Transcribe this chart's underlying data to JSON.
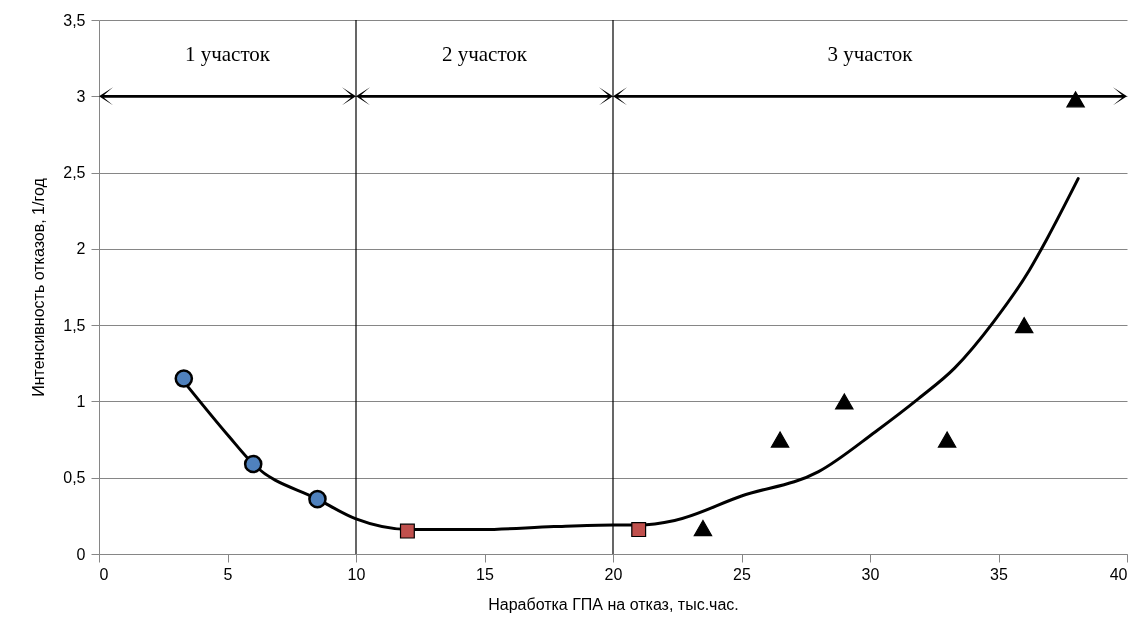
{
  "chart_data": {
    "type": "scatter",
    "xlabel": "Наработка ГПА на отказ, тыс.час.",
    "ylabel": "Интенсивность отказов, 1/год",
    "xlim": [
      0,
      40
    ],
    "ylim": [
      0,
      3.5
    ],
    "xticks": [
      0,
      5,
      10,
      15,
      20,
      25,
      30,
      35,
      40
    ],
    "yticks": [
      0,
      {
        "value": 0.5,
        "label": "0,5"
      },
      1,
      {
        "value": 1.5,
        "label": "1,5"
      },
      2,
      {
        "value": 2.5,
        "label": "2,5"
      },
      3,
      {
        "value": 3.5,
        "label": "3,5"
      }
    ],
    "grid": "y",
    "ref_lines": [
      {
        "axis": "x",
        "value": 10,
        "color": "#000000"
      },
      {
        "axis": "x",
        "value": 20,
        "color": "#000000"
      }
    ],
    "annotations": [
      "1 участок",
      "2 участок",
      "3 участок"
    ],
    "series": [
      {
        "type": "line",
        "color": "#000000",
        "marker": "none",
        "x": [
          3.3,
          5.06,
          6,
          8.5,
          10,
          12.1,
          14.9,
          17.7,
          20,
          21,
          22.4,
          25,
          28,
          30.2,
          31.9,
          33.3,
          34.8,
          36.2,
          36.9,
          38.1
        ],
        "values": [
          1.13,
          0.77,
          0.59,
          0.36,
          0.23,
          0.16,
          0.16,
          0.18,
          0.19,
          0.19,
          0.22,
          0.38,
          0.54,
          0.8,
          1.02,
          1.22,
          1.52,
          1.86,
          2.07,
          2.46
        ]
      },
      {
        "color": "#4f81bd",
        "marker": "circle",
        "x": [
          3.3,
          6,
          8.5
        ],
        "values": [
          1.15,
          0.59,
          0.36
        ]
      },
      {
        "color": "#c0504d",
        "marker": "square",
        "x": [
          12,
          21
        ],
        "values": [
          0.15,
          0.16
        ]
      },
      {
        "color": "#000000",
        "marker": "triangle",
        "x": [
          23.5,
          26.5,
          29,
          33,
          36,
          38
        ],
        "values": [
          0.17,
          0.75,
          1,
          0.75,
          1.5,
          2.98
        ]
      }
    ]
  }
}
